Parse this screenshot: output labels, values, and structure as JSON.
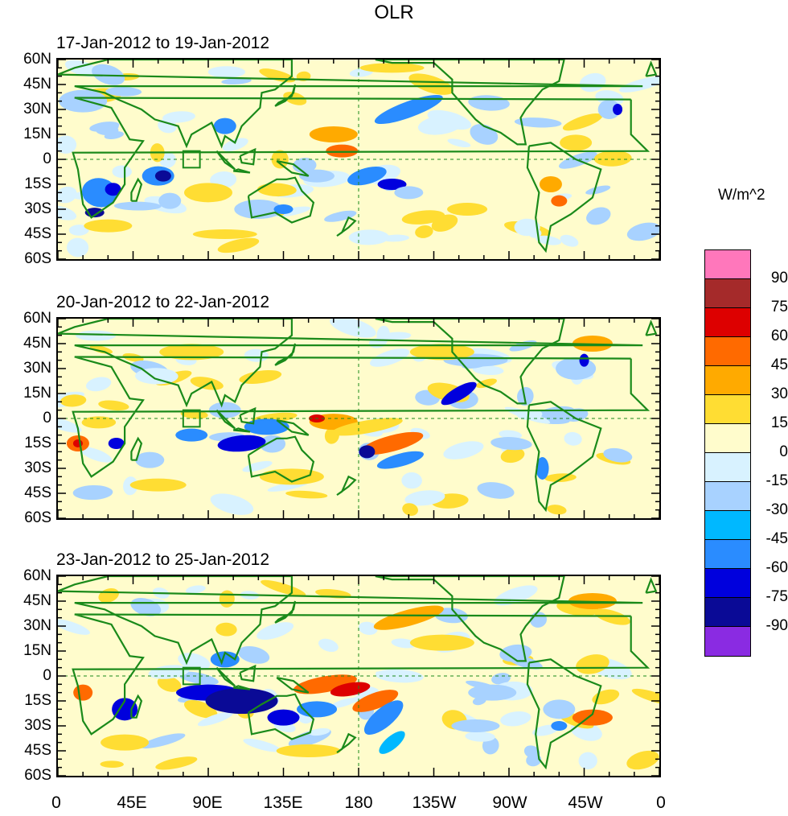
{
  "title": "OLR",
  "units": "W/m^2",
  "panels": [
    {
      "label": "17-Jan-2012 to 19-Jan-2012"
    },
    {
      "label": "20-Jan-2012 to 22-Jan-2012"
    },
    {
      "label": "23-Jan-2012 to 25-Jan-2012"
    }
  ],
  "lat_ticks": [
    "60N",
    "45N",
    "30N",
    "15N",
    "0",
    "15S",
    "30S",
    "45S",
    "60S"
  ],
  "lon_ticks": [
    "0",
    "45E",
    "90E",
    "135E",
    "180",
    "135W",
    "90W",
    "45W",
    "0"
  ],
  "colorbar": {
    "labels": [
      "90",
      "75",
      "60",
      "45",
      "30",
      "15",
      "0",
      "-15",
      "-30",
      "-45",
      "-60",
      "-75",
      "-90"
    ],
    "colors": [
      "#ff77bb",
      "#a52a2a",
      "#dd0000",
      "#ff6a00",
      "#ffaa00",
      "#ffdd33",
      "#fffccc",
      "#d8f2ff",
      "#a8d2ff",
      "#00b8ff",
      "#2a8cff",
      "#0000dd",
      "#0a0a96",
      "#8a2be2"
    ]
  }
}
